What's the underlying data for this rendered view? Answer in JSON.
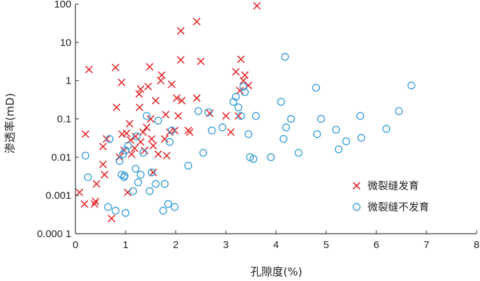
{
  "chart_data": {
    "type": "scatter",
    "xlabel": "孔隙度(%)",
    "ylabel": "渗透率(mD)",
    "xlim": [
      0,
      8
    ],
    "ylim": [
      0.0001,
      100
    ],
    "yscale": "log",
    "grid": false,
    "legend_position": "bottom-right",
    "x_ticks": [
      "0",
      "1",
      "2",
      "3",
      "4",
      "5",
      "6",
      "7",
      "8"
    ],
    "y_ticks": [
      "100",
      "10",
      "1",
      "0.1",
      "0.01",
      "0.001",
      "0.000 1"
    ],
    "series": [
      {
        "name": "微裂缝发育",
        "marker": "x",
        "color": "#e3262b",
        "points": [
          [
            0.08,
            0.0012
          ],
          [
            0.18,
            0.0006
          ],
          [
            0.2,
            0.04
          ],
          [
            0.27,
            1.95
          ],
          [
            0.38,
            0.0006
          ],
          [
            0.4,
            0.0007
          ],
          [
            0.42,
            0.002
          ],
          [
            0.55,
            0.0065
          ],
          [
            0.55,
            0.019
          ],
          [
            0.58,
            0.0035
          ],
          [
            0.62,
            0.03
          ],
          [
            0.72,
            0.00025
          ],
          [
            0.8,
            2.2
          ],
          [
            0.82,
            0.2
          ],
          [
            0.88,
            0.01
          ],
          [
            0.92,
            0.9
          ],
          [
            0.93,
            0.04
          ],
          [
            0.97,
            0.015
          ],
          [
            1.02,
            0.042
          ],
          [
            1.04,
            0.0012
          ],
          [
            1.08,
            0.075
          ],
          [
            1.1,
            0.028
          ],
          [
            1.12,
            0.012
          ],
          [
            1.18,
            0.017
          ],
          [
            1.2,
            0.035
          ],
          [
            1.27,
            0.45
          ],
          [
            1.28,
            0.2
          ],
          [
            1.3,
            0.6
          ],
          [
            1.3,
            0.025
          ],
          [
            1.35,
            0.045
          ],
          [
            1.38,
            0.015
          ],
          [
            1.42,
            0.06
          ],
          [
            1.45,
            0.7
          ],
          [
            1.48,
            2.3
          ],
          [
            1.5,
            0.1
          ],
          [
            1.52,
            0.03
          ],
          [
            1.55,
            0.02
          ],
          [
            1.55,
            0.004
          ],
          [
            1.6,
            0.3
          ],
          [
            1.65,
            0.012
          ],
          [
            1.7,
            1.0
          ],
          [
            1.72,
            1.4
          ],
          [
            1.78,
            0.03
          ],
          [
            1.8,
            0.13
          ],
          [
            1.82,
            0.011
          ],
          [
            1.88,
            0.045
          ],
          [
            1.92,
            0.8
          ],
          [
            1.98,
            0.05
          ],
          [
            2.02,
            0.35
          ],
          [
            2.05,
            0.12
          ],
          [
            2.1,
            20
          ],
          [
            2.1,
            3.5
          ],
          [
            2.12,
            0.3
          ],
          [
            2.25,
            0.05
          ],
          [
            2.28,
            0.045
          ],
          [
            2.42,
            35
          ],
          [
            2.42,
            0.35
          ],
          [
            2.5,
            3.2
          ],
          [
            2.68,
            0.14
          ],
          [
            3.0,
            0.12
          ],
          [
            3.1,
            0.045
          ],
          [
            3.2,
            1.7
          ],
          [
            3.25,
            0.12
          ],
          [
            3.28,
            0.55
          ],
          [
            3.3,
            3.6
          ],
          [
            3.35,
            1.0
          ],
          [
            3.38,
            1.4
          ],
          [
            3.45,
            0.75
          ],
          [
            3.62,
            90
          ]
        ]
      },
      {
        "name": "微裂缝不发育",
        "marker": "circle",
        "color": "#3a9fd6",
        "points": [
          [
            0.2,
            0.011
          ],
          [
            0.25,
            0.003
          ],
          [
            0.65,
            0.0005
          ],
          [
            0.68,
            0.03
          ],
          [
            0.8,
            0.0004
          ],
          [
            0.88,
            0.008
          ],
          [
            0.92,
            0.0035
          ],
          [
            0.95,
            0.012
          ],
          [
            0.97,
            0.003
          ],
          [
            0.98,
            0.0033
          ],
          [
            1.0,
            0.015
          ],
          [
            1.0,
            0.00035
          ],
          [
            1.05,
            0.02
          ],
          [
            1.15,
            0.0013
          ],
          [
            1.2,
            0.005
          ],
          [
            1.22,
            0.035
          ],
          [
            1.25,
            0.0022
          ],
          [
            1.3,
            0.0035
          ],
          [
            1.35,
            0.013
          ],
          [
            1.42,
            0.12
          ],
          [
            1.48,
            0.0013
          ],
          [
            1.52,
            0.004
          ],
          [
            1.6,
            0.002
          ],
          [
            1.65,
            0.09
          ],
          [
            1.75,
            0.0004
          ],
          [
            1.78,
            0.002
          ],
          [
            1.85,
            0.0006
          ],
          [
            1.88,
            0.025
          ],
          [
            1.92,
            0.05
          ],
          [
            1.98,
            0.0005
          ],
          [
            2.25,
            0.006
          ],
          [
            2.45,
            0.16
          ],
          [
            2.55,
            0.013
          ],
          [
            2.65,
            0.15
          ],
          [
            2.72,
            0.05
          ],
          [
            2.93,
            0.06
          ],
          [
            3.15,
            0.28
          ],
          [
            3.2,
            0.38
          ],
          [
            3.25,
            0.2
          ],
          [
            3.3,
            0.12
          ],
          [
            3.35,
            0.7
          ],
          [
            3.38,
            0.5
          ],
          [
            3.45,
            0.04
          ],
          [
            3.48,
            0.01
          ],
          [
            3.55,
            0.009
          ],
          [
            3.6,
            0.12
          ],
          [
            3.9,
            0.01
          ],
          [
            4.1,
            0.28
          ],
          [
            4.15,
            0.03
          ],
          [
            4.18,
            4.2
          ],
          [
            4.2,
            0.06
          ],
          [
            4.3,
            0.1
          ],
          [
            4.45,
            0.013
          ],
          [
            4.8,
            0.65
          ],
          [
            4.82,
            0.04
          ],
          [
            4.9,
            0.1
          ],
          [
            5.2,
            0.052
          ],
          [
            5.25,
            0.016
          ],
          [
            5.4,
            0.026
          ],
          [
            5.68,
            0.12
          ],
          [
            5.7,
            0.032
          ],
          [
            6.2,
            0.055
          ],
          [
            6.45,
            0.16
          ],
          [
            6.7,
            0.75
          ]
        ]
      }
    ]
  }
}
